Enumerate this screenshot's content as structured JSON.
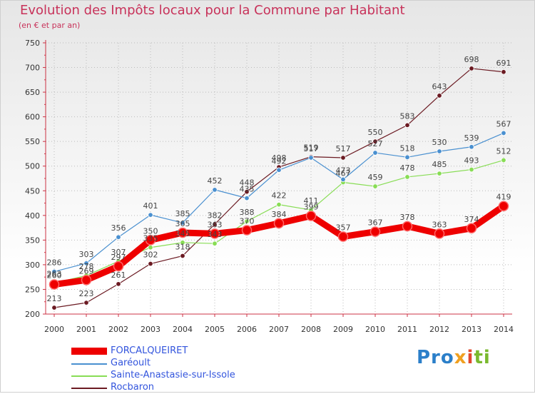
{
  "chart_data": {
    "type": "line",
    "title": "Evolution des Impôts locaux pour la Commune par Habitant",
    "subtitle": "(en € et par an)",
    "xlabel": "",
    "ylabel": "",
    "x": [
      2000,
      2001,
      2002,
      2003,
      2004,
      2005,
      2006,
      2007,
      2008,
      2009,
      2010,
      2011,
      2012,
      2013,
      2014
    ],
    "ylim": [
      200,
      750
    ],
    "yticks": [
      200,
      250,
      300,
      350,
      400,
      450,
      500,
      550,
      600,
      650,
      700,
      750
    ],
    "grid": true,
    "legend_position": "bottom-left",
    "series": [
      {
        "name": "FORCALQUEIRET",
        "color": "#ee0000",
        "values": [
          260,
          269,
          297,
          350,
          365,
          363,
          370,
          384,
          399,
          357,
          367,
          378,
          363,
          374,
          419
        ],
        "labels": [
          "260",
          "269",
          "297",
          "350",
          "365",
          "363",
          "370",
          "384",
          "399",
          "357",
          "367",
          "378",
          "363",
          "374",
          "419"
        ]
      },
      {
        "name": "Garéoult",
        "color": "#4a90d0",
        "values": [
          286,
          303,
          356,
          401,
          385,
          452,
          435,
          492,
          517,
          473,
          527,
          518,
          530,
          539,
          567
        ],
        "labels": [
          "286",
          "303",
          "356",
          "401",
          "385",
          "452",
          "435",
          "492",
          "517",
          "473",
          "527",
          "518",
          "530",
          "539",
          "567"
        ]
      },
      {
        "name": "Sainte-Anastasie-sur-Issole",
        "color": "#88dd55",
        "values": [
          263,
          278,
          307,
          335,
          345,
          343,
          388,
          422,
          411,
          467,
          459,
          478,
          485,
          493,
          512
        ],
        "labels": [
          "263",
          "278",
          "307",
          "335",
          "345",
          "343",
          "388",
          "422",
          "411",
          "467",
          "459",
          "478",
          "485",
          "493",
          "512"
        ]
      },
      {
        "name": "Rocbaron",
        "color": "#6b1a22",
        "values": [
          213,
          223,
          261,
          302,
          318,
          382,
          448,
          498,
          519,
          517,
          550,
          583,
          643,
          698,
          691
        ],
        "labels": [
          "213",
          "223",
          "261",
          "302",
          "318",
          "382",
          "448",
          "498",
          "519",
          "517",
          "550",
          "583",
          "643",
          "698",
          "691"
        ]
      }
    ]
  },
  "logo": {
    "p1": "Pro",
    "p2": "x",
    "p3": "i",
    "p4": "ti"
  }
}
